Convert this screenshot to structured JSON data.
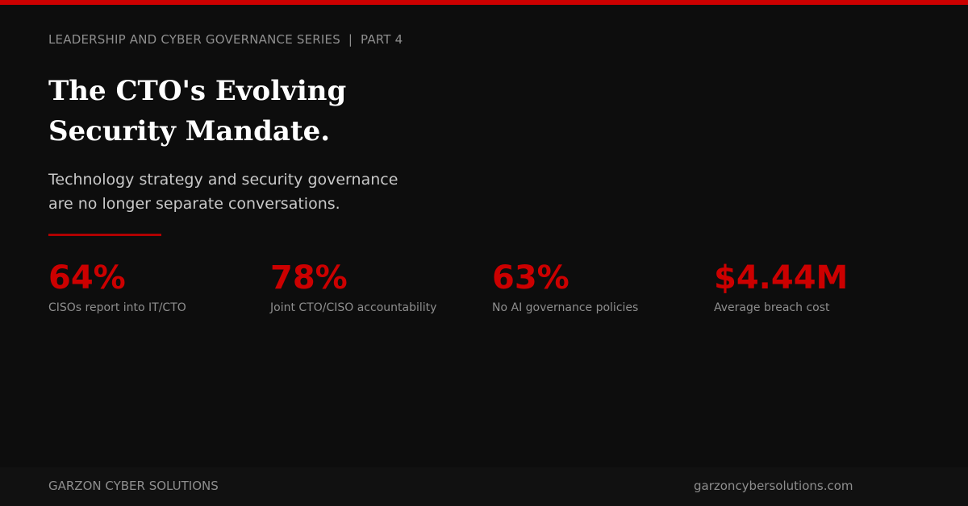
{
  "header": {
    "series_label": "LEADERSHIP AND CYBER GOVERNANCE SERIES  |  PART 4",
    "title_lines": [
      "The CTO's Evolving",
      "Security Mandate."
    ],
    "subtitle_lines": [
      "Technology strategy and security governance",
      "are no longer separate conversations."
    ]
  },
  "stats": [
    {
      "value": "64%",
      "label": "CISOs report into IT/CTO"
    },
    {
      "value": "78%",
      "label": "Joint CTO/CISO accountability"
    },
    {
      "value": "63%",
      "label": "No AI governance policies"
    },
    {
      "value": "$4.44M",
      "label": "Average breach cost"
    }
  ],
  "footer": {
    "brand": "GARZON CYBER SOLUTIONS",
    "website": "garzoncybersolutions.com"
  },
  "colors": {
    "accent": "#cc0000",
    "background": "#0d0d0d",
    "footer_background": "#111111",
    "title": "#ffffff",
    "muted_text": "#8e8e8e"
  }
}
